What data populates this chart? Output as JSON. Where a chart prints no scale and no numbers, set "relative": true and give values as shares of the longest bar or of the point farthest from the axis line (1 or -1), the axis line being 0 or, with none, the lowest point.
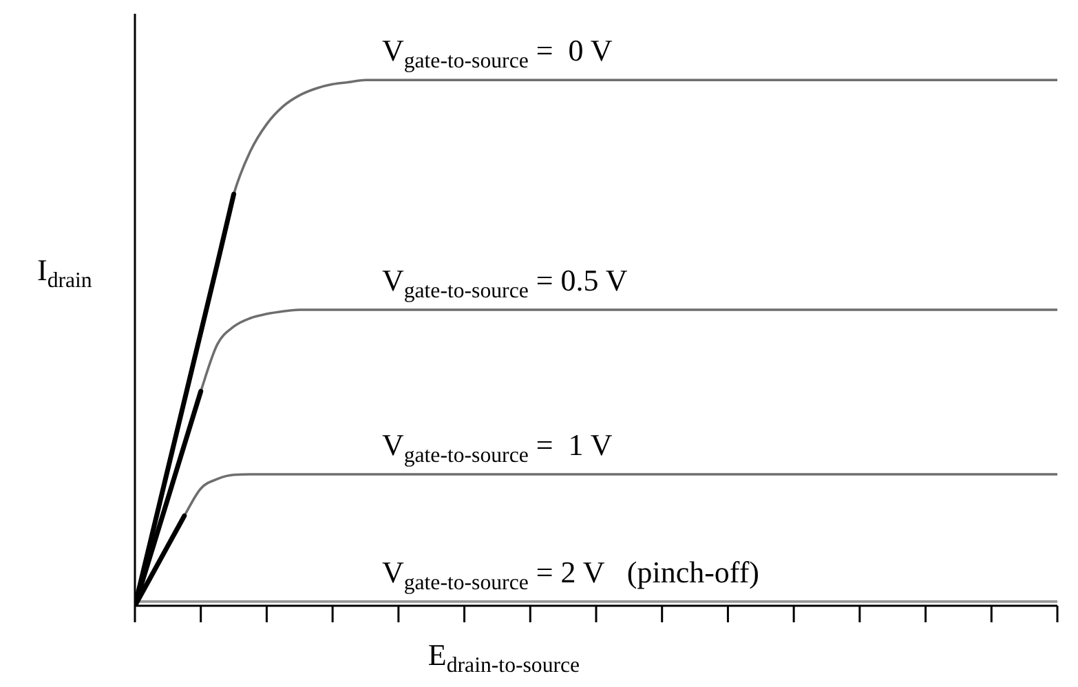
{
  "chart_data": {
    "type": "line",
    "relative": true,
    "xlabel": "E$_{drain-to-source}$",
    "ylabel": "I$_{drain}$",
    "legend": false,
    "grid": false,
    "marker": "none",
    "categories": [
      null,
      null,
      null,
      null,
      null,
      null,
      null,
      null,
      null,
      null,
      null,
      null,
      null,
      null,
      null,
      null,
      null,
      null,
      null,
      null,
      null,
      null,
      null,
      null,
      null,
      null,
      null,
      null,
      null,
      null,
      null,
      null,
      null,
      null,
      null,
      null,
      null,
      null,
      null,
      null,
      null,
      null,
      null,
      null,
      null,
      null,
      null,
      null,
      null,
      null,
      null,
      null,
      null,
      null,
      null,
      null,
      null
    ],
    "series": [
      {
        "name": "V$_{gate-to-source}$ =  0 V",
        "color": "#6e6e6e",
        "values": [
          0,
          0.13,
          0.26,
          0.39,
          0.52,
          0.65,
          0.783,
          0.864,
          0.916,
          0.95,
          0.971,
          0.984,
          0.992,
          0.996,
          1,
          1,
          1,
          1,
          1,
          1,
          1,
          1,
          1,
          1,
          1,
          1,
          1,
          1,
          1,
          1,
          1,
          1,
          1,
          1,
          1,
          1,
          1,
          1,
          1,
          1,
          1,
          1,
          1,
          1,
          1,
          1,
          1,
          1,
          1,
          1,
          1,
          1,
          1,
          1,
          1,
          1,
          1
        ]
      },
      {
        "name": "V$_{gate-to-source}$ = 0.5 V",
        "color": "#6e6e6e",
        "values": [
          0,
          0.102,
          0.204,
          0.306,
          0.408,
          0.497,
          0.531,
          0.547,
          0.555,
          0.56,
          0.563,
          0.563,
          0.563,
          0.563,
          0.563,
          0.563,
          0.563,
          0.563,
          0.563,
          0.563,
          0.563,
          0.563,
          0.563,
          0.563,
          0.563,
          0.563,
          0.563,
          0.563,
          0.563,
          0.563,
          0.563,
          0.563,
          0.563,
          0.563,
          0.563,
          0.563,
          0.563,
          0.563,
          0.563,
          0.563,
          0.563,
          0.563,
          0.563,
          0.563,
          0.563,
          0.563,
          0.563,
          0.563,
          0.563,
          0.563,
          0.563,
          0.563,
          0.563,
          0.563,
          0.563,
          0.563,
          0.563
        ]
      },
      {
        "name": "V$_{gate-to-source}$ =  1 V",
        "color": "#6e6e6e",
        "values": [
          0,
          0.057,
          0.114,
          0.171,
          0.223,
          0.241,
          0.249,
          0.25,
          0.25,
          0.25,
          0.25,
          0.25,
          0.25,
          0.25,
          0.25,
          0.25,
          0.25,
          0.25,
          0.25,
          0.25,
          0.25,
          0.25,
          0.25,
          0.25,
          0.25,
          0.25,
          0.25,
          0.25,
          0.25,
          0.25,
          0.25,
          0.25,
          0.25,
          0.25,
          0.25,
          0.25,
          0.25,
          0.25,
          0.25,
          0.25,
          0.25,
          0.25,
          0.25,
          0.25,
          0.25,
          0.25,
          0.25,
          0.25,
          0.25,
          0.25,
          0.25,
          0.25,
          0.25,
          0.25,
          0.25,
          0.25,
          0.25
        ]
      },
      {
        "name": "V$_{gate-to-source}$ = 2 V   (pinch-off)",
        "color": "#999999",
        "values": [
          0.008,
          0.008,
          0.008,
          0.008,
          0.008,
          0.008,
          0.008,
          0.008,
          0.008,
          0.008,
          0.008,
          0.008,
          0.008,
          0.008,
          0.008,
          0.008,
          0.008,
          0.008,
          0.008,
          0.008,
          0.008,
          0.008,
          0.008,
          0.008,
          0.008,
          0.008,
          0.008,
          0.008,
          0.008,
          0.008,
          0.008,
          0.008,
          0.008,
          0.008,
          0.008,
          0.008,
          0.008,
          0.008,
          0.008,
          0.008,
          0.008,
          0.008,
          0.008,
          0.008,
          0.008,
          0.008,
          0.008,
          0.008,
          0.008,
          0.008,
          0.008,
          0.008,
          0.008,
          0.008,
          0.008,
          0.008,
          0.008
        ]
      },
      {
        "color": "#000000",
        "values": [
          0,
          0.13,
          0.26,
          0.39,
          0.52,
          0.65,
          0.783,
          null,
          null,
          null,
          null,
          null,
          null,
          null,
          null,
          null,
          null,
          null,
          null,
          null,
          null,
          null,
          null,
          null,
          null,
          null,
          null,
          null,
          null,
          null,
          null,
          null,
          null,
          null,
          null,
          null,
          null,
          null,
          null,
          null,
          null,
          null,
          null,
          null,
          null,
          null,
          null,
          null,
          null,
          null,
          null,
          null,
          null,
          null,
          null,
          null,
          null
        ]
      },
      {
        "color": "#000000",
        "values": [
          0,
          0.102,
          0.204,
          0.306,
          0.408,
          null,
          null,
          null,
          null,
          null,
          null,
          null,
          null,
          null,
          null,
          null,
          null,
          null,
          null,
          null,
          null,
          null,
          null,
          null,
          null,
          null,
          null,
          null,
          null,
          null,
          null,
          null,
          null,
          null,
          null,
          null,
          null,
          null,
          null,
          null,
          null,
          null,
          null,
          null,
          null,
          null,
          null,
          null,
          null,
          null,
          null,
          null,
          null,
          null,
          null,
          null,
          null
        ]
      },
      {
        "color": "#000000",
        "values": [
          0,
          0.057,
          0.114,
          0.171,
          null,
          null,
          null,
          null,
          null,
          null,
          null,
          null,
          null,
          null,
          null,
          null,
          null,
          null,
          null,
          null,
          null,
          null,
          null,
          null,
          null,
          null,
          null,
          null,
          null,
          null,
          null,
          null,
          null,
          null,
          null,
          null,
          null,
          null,
          null,
          null,
          null,
          null,
          null,
          null,
          null,
          null,
          null,
          null,
          null,
          null,
          null,
          null,
          null,
          null,
          null,
          null,
          null
        ]
      }
    ]
  }
}
